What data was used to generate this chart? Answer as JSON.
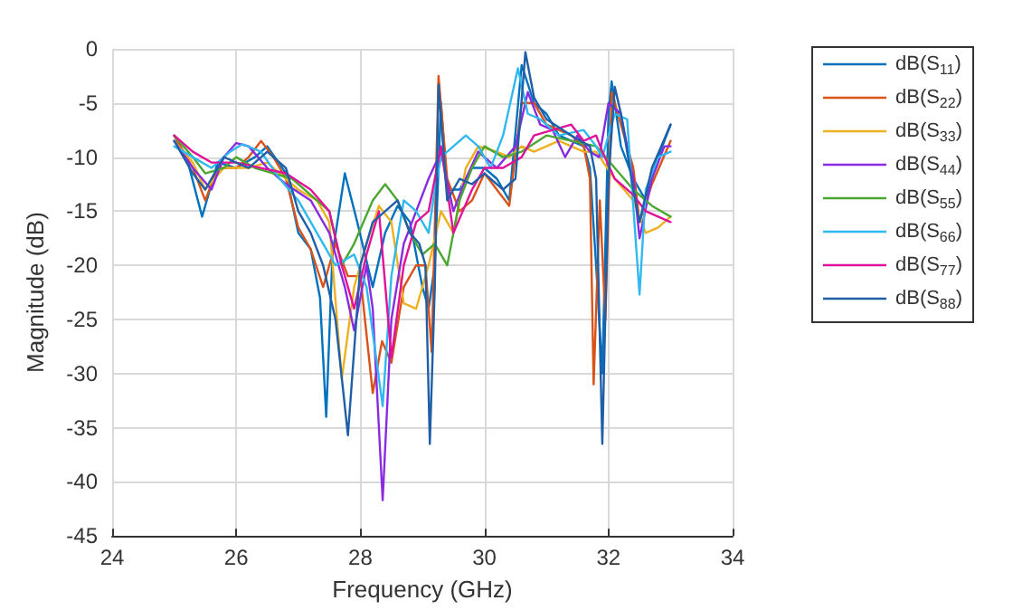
{
  "chart_data": {
    "type": "line",
    "xlabel": "Frequency (GHz)",
    "ylabel": "Magnitude (dB)",
    "xlim": [
      24,
      34
    ],
    "xticks": [
      24,
      26,
      28,
      30,
      32,
      34
    ],
    "ylim": [
      -45,
      0
    ],
    "yticks": [
      -45,
      -40,
      -35,
      -30,
      -25,
      -20,
      -15,
      -10,
      -5,
      0
    ],
    "grid": true,
    "legend": "right",
    "series": [
      {
        "name": "dB(S$_{11}$)",
        "color": "#0072bd",
        "x": [
          25,
          25.2,
          25.45,
          25.7,
          26,
          26.3,
          26.5,
          26.8,
          27,
          27.2,
          27.35,
          27.45,
          27.55,
          27.75,
          27.95,
          28.2,
          28.4,
          28.6,
          28.8,
          29,
          29.1,
          29.2,
          29.3,
          29.4,
          29.6,
          29.8,
          30,
          30.2,
          30.4,
          30.6,
          30.8,
          31,
          31.2,
          31.4,
          31.6,
          31.7,
          31.8,
          31.9,
          32,
          32.05,
          32.2,
          32.4,
          32.6,
          32.8,
          33
        ],
        "values": [
          -8,
          -10,
          -15.5,
          -10.5,
          -11,
          -10,
          -9,
          -11.5,
          -17,
          -18.5,
          -23,
          -34,
          -19,
          -11.5,
          -16,
          -22,
          -17,
          -14.5,
          -16,
          -22,
          -24,
          -20,
          -5,
          -13,
          -13,
          -11,
          -11,
          -12,
          -14,
          -1.5,
          -5,
          -6,
          -8,
          -8.5,
          -9,
          -11,
          -20,
          -30,
          -6,
          -3,
          -9,
          -12,
          -14,
          -10,
          -7
        ]
      },
      {
        "name": "dB(S$_{22}$)",
        "color": "#d95319",
        "x": [
          25,
          25.3,
          25.5,
          25.7,
          26,
          26.2,
          26.4,
          26.6,
          26.8,
          27,
          27.2,
          27.4,
          27.6,
          27.8,
          28,
          28.2,
          28.35,
          28.5,
          28.7,
          28.9,
          29.05,
          29.15,
          29.26,
          29.4,
          29.6,
          29.8,
          30,
          30.2,
          30.4,
          30.6,
          30.8,
          31,
          31.4,
          31.6,
          31.7,
          31.76,
          31.86,
          31.95,
          32.05,
          32.2,
          32.4,
          32.5,
          32.7,
          33
        ],
        "values": [
          -8,
          -11,
          -14,
          -11,
          -11,
          -10,
          -8.5,
          -10,
          -12,
          -16.5,
          -18.5,
          -22,
          -18,
          -21,
          -21,
          -31.8,
          -27,
          -29,
          -22,
          -20,
          -20,
          -28,
          -2.5,
          -12,
          -15,
          -14,
          -11.5,
          -13,
          -14.5,
          -5,
          -5,
          -7,
          -8,
          -9,
          -12,
          -31,
          -14,
          -25,
          -4,
          -7,
          -11,
          -16,
          -12.5,
          -8.5
        ]
      },
      {
        "name": "dB(S$_{33}$)",
        "color": "#edb120",
        "x": [
          25,
          25.3,
          25.5,
          25.8,
          26.2,
          26.5,
          26.8,
          27,
          27.3,
          27.5,
          27.7,
          27.9,
          28.1,
          28.3,
          28.5,
          28.7,
          28.9,
          29.1,
          29.3,
          29.5,
          29.7,
          29.9,
          30.2,
          30.4,
          30.6,
          30.8,
          31.2,
          31.6,
          31.8,
          32.1,
          32.4,
          32.6,
          32.8,
          33
        ],
        "values": [
          -8.5,
          -10.5,
          -13,
          -11,
          -11,
          -10.5,
          -12,
          -13,
          -14,
          -16,
          -30.5,
          -22,
          -18,
          -14.5,
          -16,
          -23.5,
          -24,
          -20,
          -15,
          -17,
          -11,
          -9,
          -9.5,
          -10,
          -9,
          -9.5,
          -8.5,
          -9.5,
          -9.5,
          -12,
          -14,
          -17,
          -16.5,
          -15.5
        ]
      },
      {
        "name": "dB(S$_{44}$)",
        "color": "#8a2be2",
        "x": [
          25,
          25.3,
          25.6,
          25.8,
          26,
          26.2,
          26.5,
          26.8,
          27.2,
          27.5,
          27.75,
          27.9,
          28.1,
          28.2,
          28.36,
          28.5,
          28.7,
          28.9,
          29.1,
          29.3,
          29.5,
          29.7,
          29.9,
          30.2,
          30.5,
          30.7,
          30.9,
          31.1,
          31.3,
          31.5,
          31.7,
          31.85,
          32,
          32.2,
          32.4,
          32.5,
          32.7,
          32.9,
          33
        ],
        "values": [
          -8.5,
          -11,
          -13,
          -10,
          -8.7,
          -9,
          -11,
          -12.5,
          -14,
          -17,
          -22,
          -26,
          -20,
          -24,
          -41.7,
          -25,
          -18,
          -15,
          -12,
          -9.5,
          -15,
          -12,
          -9.5,
          -11,
          -9,
          -4,
          -7,
          -7.5,
          -10,
          -8,
          -9.5,
          -10,
          -5,
          -6,
          -12,
          -17.5,
          -12,
          -9,
          -9
        ]
      },
      {
        "name": "dB(S$_{55}$)",
        "color": "#4aa832",
        "x": [
          25,
          25.3,
          25.5,
          25.8,
          26,
          26.3,
          26.6,
          26.9,
          27.2,
          27.5,
          27.7,
          27.9,
          28.2,
          28.4,
          28.6,
          28.8,
          29,
          29.2,
          29.4,
          29.6,
          29.8,
          30,
          30.3,
          30.6,
          31,
          31.4,
          31.8,
          32.1,
          32.4,
          32.7,
          33
        ],
        "values": [
          -8,
          -10,
          -11.5,
          -11,
          -10,
          -11,
          -11.5,
          -12,
          -13.5,
          -15,
          -20,
          -18,
          -14,
          -12.5,
          -14,
          -17,
          -19,
          -18,
          -20,
          -14,
          -11,
          -9,
          -10,
          -9.5,
          -8,
          -8.5,
          -9,
          -11,
          -13,
          -14.5,
          -15.5
        ]
      },
      {
        "name": "dB(S$_{66}$)",
        "color": "#30b8f0",
        "x": [
          25,
          25.3,
          25.6,
          25.9,
          26.1,
          26.4,
          26.7,
          27,
          27.3,
          27.6,
          27.9,
          28.1,
          28.36,
          28.5,
          28.7,
          28.9,
          29.1,
          29.2,
          29.3,
          29.5,
          29.7,
          29.9,
          30.1,
          30.3,
          30.54,
          30.7,
          30.9,
          31.2,
          31.6,
          31.8,
          31.9,
          32,
          32.1,
          32.3,
          32.5,
          32.6,
          32.8,
          33
        ],
        "values": [
          -9,
          -10,
          -11,
          -9.5,
          -8.8,
          -9.5,
          -12,
          -14,
          -17,
          -20,
          -19,
          -22,
          -33,
          -21,
          -14,
          -15,
          -17,
          -13,
          -10,
          -9,
          -8,
          -9,
          -11,
          -8,
          -1.8,
          -6,
          -6.5,
          -8,
          -7.5,
          -9,
          -10,
          -8,
          -6,
          -6.5,
          -22.7,
          -13,
          -10,
          -9.5
        ]
      },
      {
        "name": "dB(S$_{77}$)",
        "color": "#e0129a",
        "x": [
          25,
          25.3,
          25.6,
          26,
          26.4,
          26.8,
          27.2,
          27.5,
          27.7,
          27.9,
          28.1,
          28.3,
          28.5,
          28.7,
          28.9,
          29.1,
          29.3,
          29.5,
          29.8,
          30,
          30.3,
          30.6,
          30.8,
          31.1,
          31.4,
          31.6,
          31.8,
          31.9,
          32.1,
          32.4,
          32.6,
          32.8,
          33
        ],
        "values": [
          -8,
          -9.5,
          -10.5,
          -10.5,
          -11,
          -11.5,
          -13,
          -15,
          -20,
          -24,
          -19,
          -15,
          -28.5,
          -20,
          -16,
          -15,
          -9,
          -17,
          -13,
          -11,
          -11,
          -10,
          -8,
          -7.5,
          -7,
          -8.5,
          -8,
          -9.5,
          -12,
          -13.5,
          -15,
          -15.5,
          -16
        ]
      },
      {
        "name": "dB(S$_{88}$)",
        "color": "#1f5fa8",
        "x": [
          25,
          25.3,
          25.5,
          25.8,
          26.2,
          26.5,
          26.8,
          27,
          27.2,
          27.4,
          27.6,
          27.8,
          28,
          28.2,
          28.4,
          28.6,
          28.8,
          28.95,
          29.05,
          29.12,
          29.2,
          29.26,
          29.4,
          29.6,
          29.8,
          30,
          30.3,
          30.5,
          30.66,
          30.8,
          31,
          31.4,
          31.7,
          31.8,
          31.9,
          32,
          32.1,
          32.2,
          32.4,
          32.5,
          32.7,
          33
        ],
        "values": [
          -8.5,
          -11.5,
          -13,
          -10,
          -11,
          -9.5,
          -11,
          -15,
          -17,
          -20,
          -25,
          -35.7,
          -20,
          -16,
          -15,
          -14,
          -17,
          -18,
          -20,
          -36.5,
          -22,
          -3.3,
          -14,
          -12,
          -12.5,
          -11.5,
          -13,
          -12,
          -0.3,
          -4.5,
          -6.5,
          -8,
          -9,
          -12,
          -36.5,
          -12,
          -3.5,
          -6,
          -13,
          -16,
          -11,
          -7
        ]
      }
    ]
  }
}
